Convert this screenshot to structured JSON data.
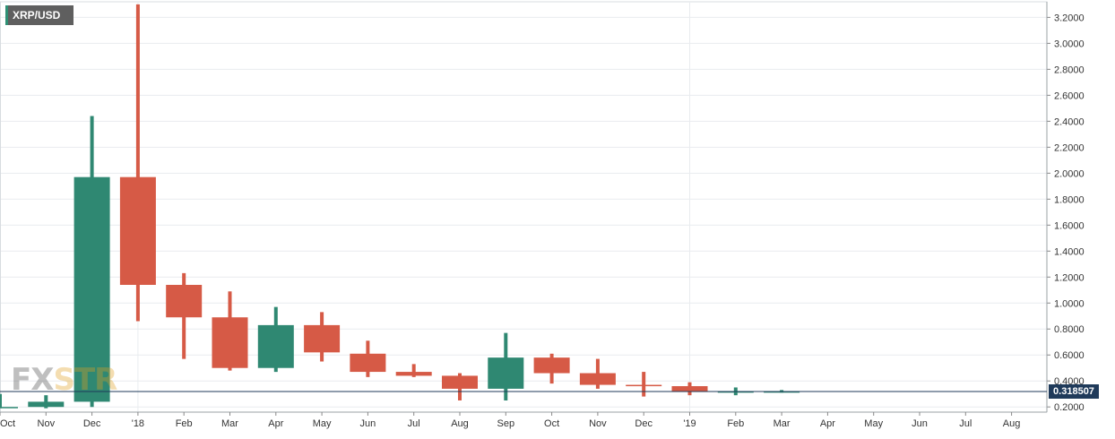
{
  "chart_data": {
    "type": "candlestick",
    "symbol": "XRP/USD",
    "watermark": {
      "part1": "FX",
      "part2": "STR"
    },
    "x_labels": [
      "Oct",
      "Nov",
      "Dec",
      "'18",
      "Feb",
      "Mar",
      "Apr",
      "May",
      "Jun",
      "Jul",
      "Aug",
      "Sep",
      "Oct",
      "Nov",
      "Dec",
      "'19",
      "Feb",
      "Mar",
      "Apr",
      "May",
      "Jun",
      "Jul",
      "Aug"
    ],
    "y_ticks": [
      "0.2000",
      "0.4000",
      "0.6000",
      "0.8000",
      "1.0000",
      "1.2000",
      "1.4000",
      "1.6000",
      "1.8000",
      "2.0000",
      "2.2000",
      "2.4000",
      "2.6000",
      "2.8000",
      "3.0000",
      "3.2000"
    ],
    "ylim": [
      0.16,
      3.32
    ],
    "last_price": "0.318507",
    "last_price_value": 0.3185,
    "colors": {
      "up": "#2f8872",
      "down": "#d65a46",
      "price_line": "#1f3a5a",
      "grid": "#e9ecef"
    },
    "candles": [
      {
        "month": "Oct",
        "open": 0.2,
        "high": 0.3,
        "low": 0.19,
        "close": 0.2
      },
      {
        "month": "Nov",
        "open": 0.2,
        "high": 0.29,
        "low": 0.19,
        "close": 0.24
      },
      {
        "month": "Dec",
        "open": 0.24,
        "high": 2.44,
        "low": 0.2,
        "close": 1.97
      },
      {
        "month": "'18",
        "open": 1.97,
        "high": 3.3,
        "low": 0.86,
        "close": 1.14
      },
      {
        "month": "Feb",
        "open": 1.14,
        "high": 1.23,
        "low": 0.57,
        "close": 0.89
      },
      {
        "month": "Mar",
        "open": 0.89,
        "high": 1.09,
        "low": 0.48,
        "close": 0.5
      },
      {
        "month": "Apr",
        "open": 0.5,
        "high": 0.97,
        "low": 0.47,
        "close": 0.83
      },
      {
        "month": "May",
        "open": 0.83,
        "high": 0.93,
        "low": 0.55,
        "close": 0.62
      },
      {
        "month": "Jun",
        "open": 0.61,
        "high": 0.71,
        "low": 0.43,
        "close": 0.47
      },
      {
        "month": "Jul",
        "open": 0.47,
        "high": 0.53,
        "low": 0.43,
        "close": 0.44
      },
      {
        "month": "Aug",
        "open": 0.44,
        "high": 0.46,
        "low": 0.25,
        "close": 0.34
      },
      {
        "month": "Sep",
        "open": 0.34,
        "high": 0.77,
        "low": 0.25,
        "close": 0.58
      },
      {
        "month": "Oct",
        "open": 0.58,
        "high": 0.61,
        "low": 0.38,
        "close": 0.46
      },
      {
        "month": "Nov",
        "open": 0.46,
        "high": 0.57,
        "low": 0.34,
        "close": 0.37
      },
      {
        "month": "Dec",
        "open": 0.37,
        "high": 0.47,
        "low": 0.28,
        "close": 0.36
      },
      {
        "month": "'19",
        "open": 0.36,
        "high": 0.39,
        "low": 0.29,
        "close": 0.32
      },
      {
        "month": "Feb",
        "open": 0.31,
        "high": 0.35,
        "low": 0.29,
        "close": 0.32
      },
      {
        "month": "Mar",
        "open": 0.32,
        "high": 0.33,
        "low": 0.31,
        "close": 0.32
      }
    ]
  }
}
